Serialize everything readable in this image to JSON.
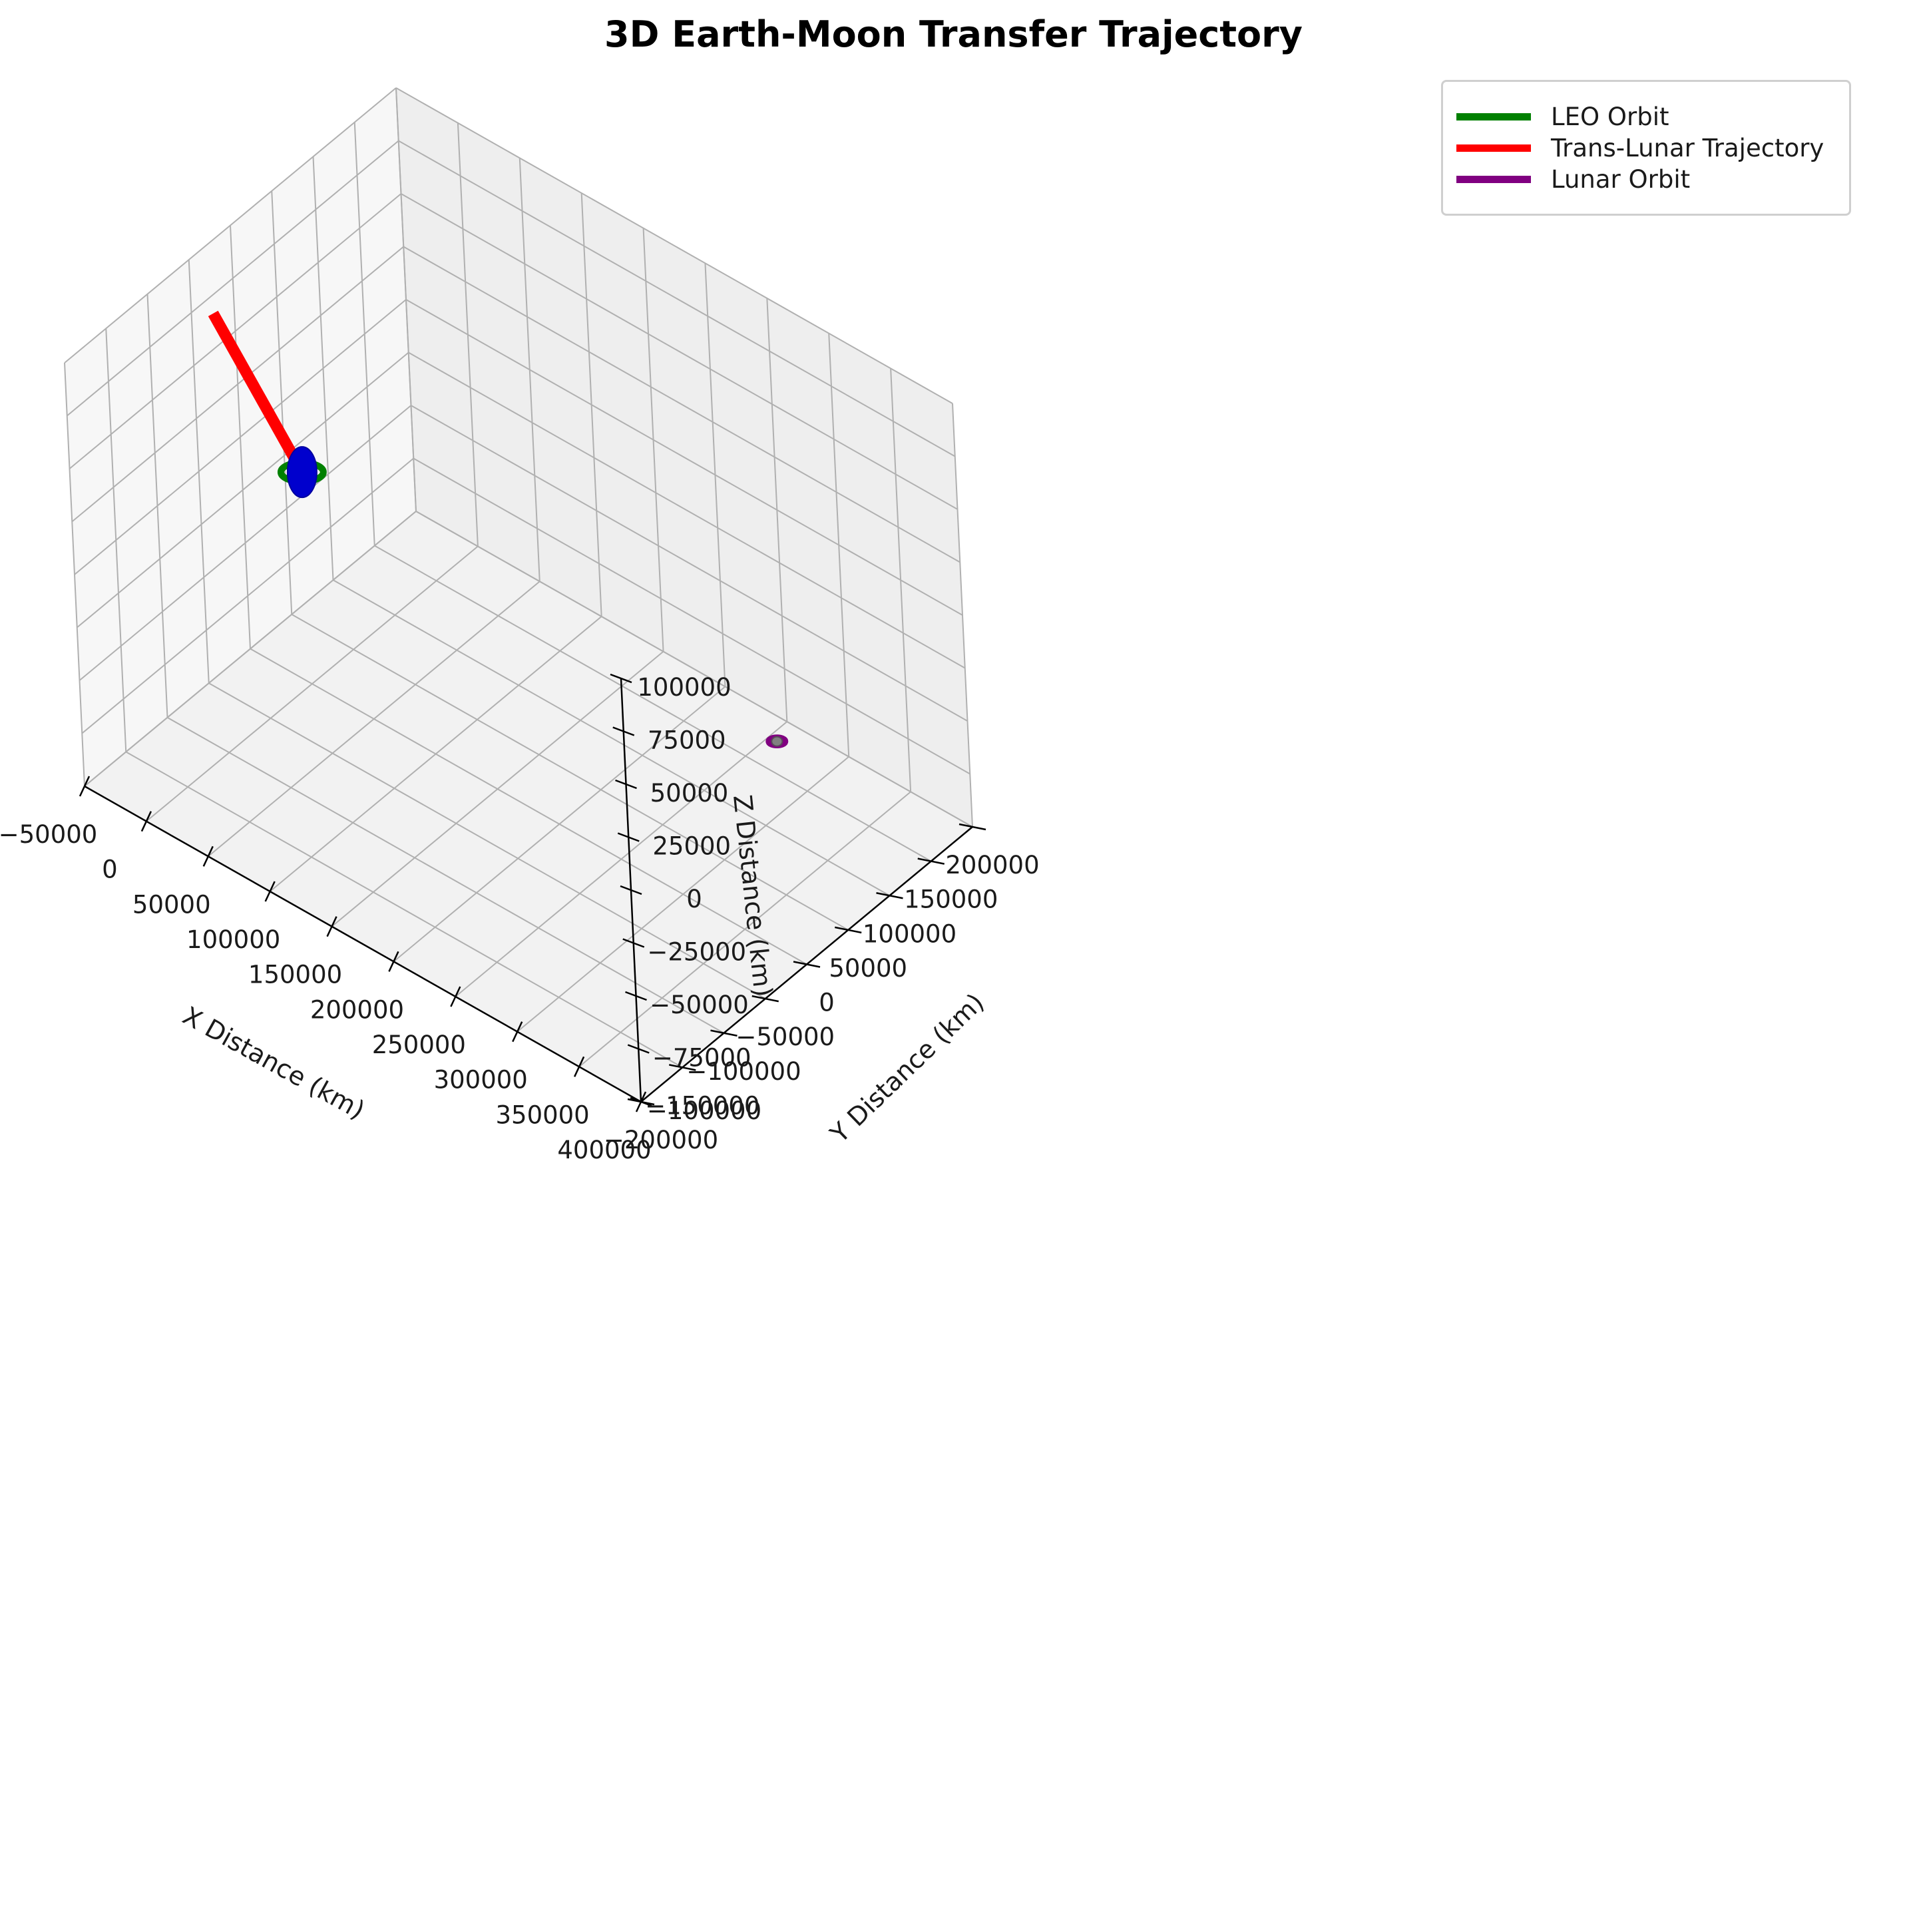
{
  "title": "3D Earth-Moon Transfer Trajectory",
  "legend": {
    "items": [
      {
        "label": "LEO Orbit",
        "color": "#008000"
      },
      {
        "label": "Trans-Lunar Trajectory",
        "color": "#ff0000"
      },
      {
        "label": "Lunar Orbit",
        "color": "#800080"
      }
    ]
  },
  "chart_data": {
    "type": "line",
    "projection": "3d",
    "title": "3D Earth-Moon Transfer Trajectory",
    "xlabel": "X Distance (km)",
    "ylabel": "Y Distance (km)",
    "zlabel": "Z Distance (km)",
    "xlim": [
      -50000,
      400000
    ],
    "ylim": [
      -200000,
      200000
    ],
    "zlim": [
      -100000,
      100000
    ],
    "xticks": [
      -50000,
      0,
      50000,
      100000,
      150000,
      200000,
      250000,
      300000,
      350000,
      400000
    ],
    "xtick_labels": [
      "−50000",
      "0",
      "50000",
      "100000",
      "150000",
      "200000",
      "250000",
      "300000",
      "350000",
      "400000"
    ],
    "yticks": [
      -200000,
      -150000,
      -100000,
      -50000,
      0,
      50000,
      100000,
      150000,
      200000
    ],
    "ytick_labels": [
      "−200000",
      "−150000",
      "−100000",
      "−50000",
      "0",
      "50000",
      "100000",
      "150000",
      "200000"
    ],
    "zticks": [
      -100000,
      -75000,
      -50000,
      -25000,
      0,
      25000,
      50000,
      75000,
      100000
    ],
    "ztick_labels": [
      "−100000",
      "−75000",
      "−50000",
      "−25000",
      "0",
      "25000",
      "50000",
      "75000",
      "100000"
    ],
    "grid": true,
    "legend_position": "top-right",
    "series": [
      {
        "name": "LEO Orbit",
        "color": "#008000",
        "kind": "orbit",
        "center": [
          0,
          0,
          0
        ],
        "radius": 6800
      },
      {
        "name": "Trans-Lunar Trajectory",
        "color": "#ff0000",
        "kind": "line",
        "points": [
          [
            0,
            0,
            0
          ],
          [
            -62000,
            -8000,
            57000
          ]
        ]
      },
      {
        "name": "Lunar Orbit",
        "color": "#800080",
        "kind": "orbit",
        "center": [
          384000,
          0,
          0
        ],
        "radius": 2000
      }
    ],
    "bodies": [
      {
        "name": "Earth",
        "color": "#0000cd",
        "center": [
          0,
          0,
          0
        ],
        "radius": 6371
      },
      {
        "name": "Moon",
        "color": "#808080",
        "center": [
          384000,
          0,
          0
        ],
        "radius": 1737
      }
    ]
  }
}
